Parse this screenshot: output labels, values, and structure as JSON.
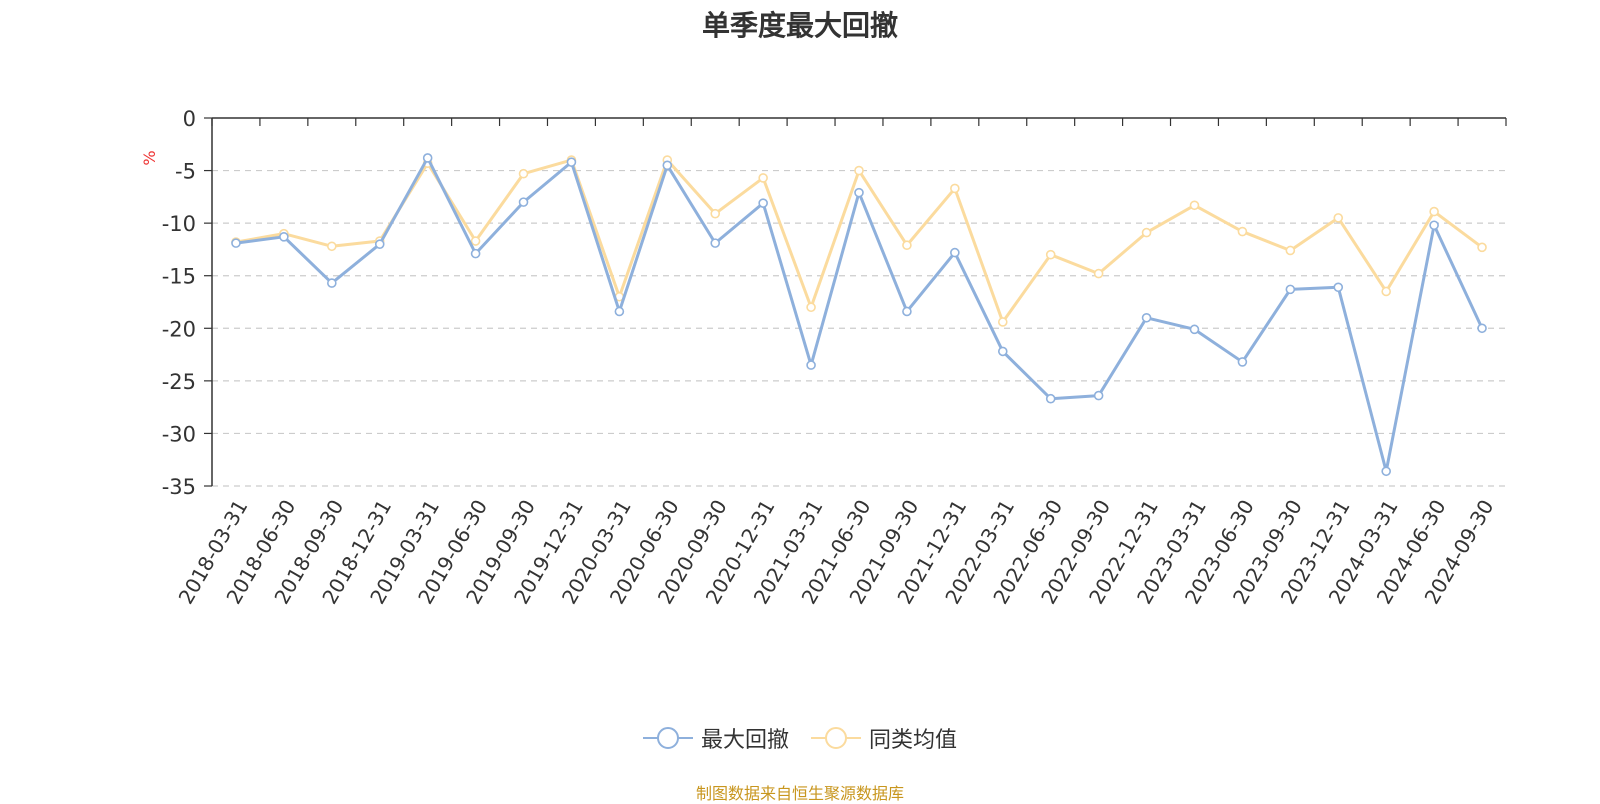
{
  "chart_data": {
    "type": "line",
    "title": "单季度最大回撤",
    "ylabel": "%",
    "ylim": [
      -35,
      0
    ],
    "yticks": [
      0,
      -5,
      -10,
      -15,
      -20,
      -25,
      -30,
      -35
    ],
    "grid": true,
    "legend_position": "bottom",
    "source": "制图数据来自恒生聚源数据库",
    "categories": [
      "2018-03-31",
      "2018-06-30",
      "2018-09-30",
      "2018-12-31",
      "2019-03-31",
      "2019-06-30",
      "2019-09-30",
      "2019-12-31",
      "2020-03-31",
      "2020-06-30",
      "2020-09-30",
      "2020-12-31",
      "2021-03-31",
      "2021-06-30",
      "2021-09-30",
      "2021-12-31",
      "2022-03-31",
      "2022-06-30",
      "2022-09-30",
      "2022-12-31",
      "2023-03-31",
      "2023-06-30",
      "2023-09-30",
      "2023-12-31",
      "2024-03-31",
      "2024-06-30",
      "2024-09-30"
    ],
    "series": [
      {
        "name": "最大回撤",
        "color": "#8eb0dc",
        "values": [
          -11.9,
          -11.3,
          -15.7,
          -12.0,
          -3.8,
          -12.9,
          -8.0,
          -4.2,
          -18.4,
          -4.5,
          -11.9,
          -8.1,
          -23.5,
          -7.1,
          -18.4,
          -12.8,
          -22.2,
          -26.7,
          -26.4,
          -19.0,
          -20.1,
          -23.2,
          -16.3,
          -16.1,
          -33.6,
          -10.2,
          -20.0
        ]
      },
      {
        "name": "同类均值",
        "color": "#fbdb9e",
        "values": [
          -11.8,
          -11.0,
          -12.2,
          -11.7,
          -4.3,
          -11.7,
          -5.3,
          -4.0,
          -17.0,
          -4.0,
          -9.1,
          -5.7,
          -18.0,
          -5.0,
          -12.1,
          -6.7,
          -19.4,
          -13.0,
          -14.8,
          -10.9,
          -8.3,
          -10.8,
          -12.6,
          -9.5,
          -16.5,
          -8.9,
          -12.3
        ]
      }
    ]
  }
}
